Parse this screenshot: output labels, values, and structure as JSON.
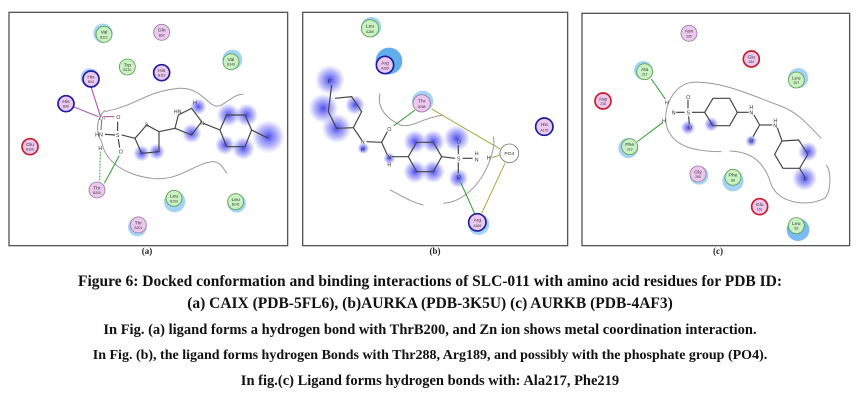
{
  "panels": [
    {
      "label": "(a)",
      "residues": [
        {
          "name": "Val",
          "num": "B121",
          "type": "green"
        },
        {
          "name": "Gln",
          "num": "B92",
          "type": "pink"
        },
        {
          "name": "Trp",
          "num": "B210",
          "type": "green"
        },
        {
          "name": "His",
          "num": "B119",
          "type": "blue"
        },
        {
          "name": "Val",
          "num": "B143",
          "type": "green"
        },
        {
          "name": "His",
          "num": "B94",
          "type": "blue"
        },
        {
          "name": "His",
          "num": "B96",
          "type": "blue"
        },
        {
          "name": "Glu",
          "num": "B106",
          "type": "red"
        },
        {
          "name": "Thr",
          "num": "B200",
          "type": "pink"
        },
        {
          "name": "Leu",
          "num": "B199",
          "type": "green"
        },
        {
          "name": "Leu",
          "num": "B141",
          "type": "green"
        },
        {
          "name": "Thr",
          "num": "B201",
          "type": "pink"
        }
      ],
      "atoms": {
        "zn": "Zn",
        "o1": "O",
        "hn": "HN",
        "h": "H",
        "s": "S",
        "o2": "O",
        "ts": "S",
        "nh": "HN",
        "h2": "H",
        "n": "N"
      }
    },
    {
      "label": "(b)",
      "residues": [
        {
          "name": "Leu",
          "num": "A289",
          "type": "green"
        },
        {
          "name": "Arg",
          "num": "A285",
          "type": "blue"
        },
        {
          "name": "Thr",
          "num": "A288",
          "type": "pink"
        },
        {
          "name": "His",
          "num": "A175",
          "type": "blue"
        },
        {
          "name": "Arg",
          "num": "A189",
          "type": "blue"
        },
        {
          "name": "PO4",
          "num": "",
          "type": "white"
        }
      ],
      "atoms": {
        "f": "F",
        "o": "O",
        "n1": "N",
        "h1": "H",
        "n2": "N",
        "h2": "H",
        "s": "S",
        "o1": "O",
        "o2": "O",
        "nh": "H",
        "n3": "N",
        "h3": "H"
      }
    },
    {
      "label": "(c)",
      "residues": [
        {
          "name": "Asn",
          "num": "205",
          "type": "pink"
        },
        {
          "name": "Glu",
          "num": "264",
          "type": "red"
        },
        {
          "name": "Leu",
          "num": "207",
          "type": "green"
        },
        {
          "name": "Ala",
          "num": "217",
          "type": "green"
        },
        {
          "name": "Asp",
          "num": "218",
          "type": "red"
        },
        {
          "name": "Phe",
          "num": "219",
          "type": "green"
        },
        {
          "name": "Gly",
          "num": "260",
          "type": "pink"
        },
        {
          "name": "Phe",
          "num": "88",
          "type": "green"
        },
        {
          "name": "Glu",
          "num": "161",
          "type": "red"
        },
        {
          "name": "Leu",
          "num": "83",
          "type": "green"
        }
      ],
      "atoms": {
        "h1": "H",
        "n": "N",
        "h2": "H",
        "s": "S",
        "o1": "O",
        "o2": "O",
        "nh1": "H",
        "n1": "N",
        "o": "O",
        "nh2": "H",
        "n2": "N",
        "f": "F"
      }
    }
  ],
  "caption": {
    "title": "Figure 6: Docked conformation and binding interactions of SLC-011 with amino acid residues for PDB ID:",
    "title_line2": "(a) CAIX (PDB-5FL6), (b)AURKA (PDB-3K5U) (c) AURKB (PDB-4AF3)",
    "note_a": "In Fig. (a) ligand forms a hydrogen bond with ThrB200, and Zn ion shows metal coordination interaction.",
    "note_b": "In Fig. (b), the ligand forms hydrogen Bonds with Thr288, Arg189, and possibly with the phosphate group (PO4).",
    "note_c": "In fig.(c) Ligand forms hydrogen bonds with: Ala217, Phe219"
  },
  "colors": {
    "hydrophobic": "#4a4af0",
    "hbond": "#2a9a2a",
    "metal": "#b040b0",
    "acidic": "#c81c2a",
    "basic": "#1c1ca0",
    "polar": "#ecc8ef",
    "greasy": "#c9f1c1"
  }
}
